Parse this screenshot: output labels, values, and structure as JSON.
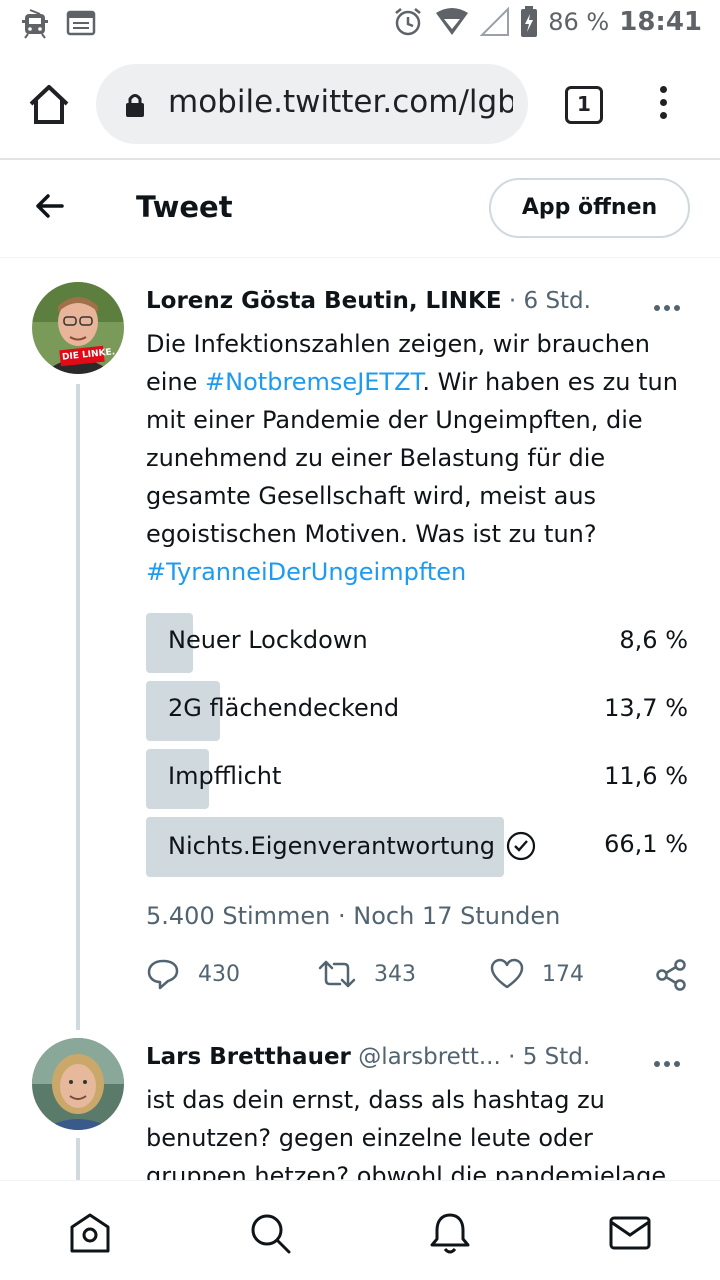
{
  "statusbar": {
    "battery": "86 %",
    "time": "18:41"
  },
  "browser": {
    "url": "mobile.twitter.com/lgbeu",
    "tab_count": "1"
  },
  "header": {
    "title": "Tweet",
    "app_button": "App öffnen"
  },
  "tweet": {
    "author": "Lorenz Gösta Beutin, LINKE",
    "time": "· 6 Std.",
    "avatar_badge": "DIE LINKE.",
    "text_1": "Die Infektionszahlen zeigen, wir brauchen eine ",
    "hashtag_1": "#NotbremseJETZT",
    "text_2": ". Wir haben es zu tun mit einer Pandemie der Ungeimpften, die zunehmend zu einer Belastung für die gesamte Gesellschaft wird, meist aus egoistischen Motiven. Was ist zu tun? ",
    "hashtag_2": "#TyranneiDerUngeimpften",
    "poll": [
      {
        "label": "Neuer Lockdown",
        "pct": "8,6 %",
        "value": 8.6
      },
      {
        "label": "2G flächendeckend",
        "pct": "13,7 %",
        "value": 13.7
      },
      {
        "label": "Impfflicht",
        "pct": "11,6 %",
        "value": 11.6
      },
      {
        "label": "Nichts.Eigenverantwortung",
        "pct": "66,1 %",
        "value": 66.1
      }
    ],
    "poll_meta": "5.400 Stimmen · Noch 17 Stunden",
    "replies": "430",
    "retweets": "343",
    "likes": "174"
  },
  "reply": {
    "author": "Lars Bretthauer",
    "handle": "@larsbrett...",
    "time": "· 5 Std.",
    "text": "ist das dein ernst, dass als hashtag zu benutzen? gegen einzelne leute oder gruppen hetzen? obwohl die pandemielage"
  },
  "colors": {
    "accent": "#1d9bf0",
    "poll_bar": "#cfd9de",
    "muted": "#536471"
  }
}
